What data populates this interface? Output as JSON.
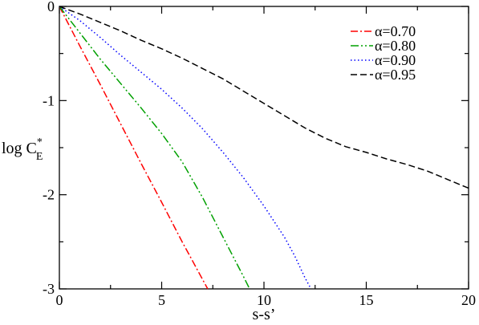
{
  "chart_data": {
    "type": "line",
    "xlabel": "s-s’",
    "ylabel": {
      "base": "log C",
      "superscript": "*",
      "subscript": "E"
    },
    "xlim": [
      0,
      20
    ],
    "ylim": [
      -3,
      0
    ],
    "xticks": [
      0,
      5,
      10,
      15,
      20
    ],
    "yticks": [
      -3,
      -2,
      -1,
      0
    ],
    "grid": false,
    "legend_position": "top-right",
    "series": [
      {
        "name": "α=0.70",
        "color": "#ff0000",
        "dash": "dash-dot",
        "x": [
          0,
          1,
          2,
          3,
          4,
          5,
          6,
          6.5,
          7,
          7.25
        ],
        "y": [
          0,
          -0.42,
          -0.83,
          -1.25,
          -1.67,
          -2.08,
          -2.5,
          -2.7,
          -2.9,
          -3.0
        ]
      },
      {
        "name": "α=0.80",
        "color": "#00a000",
        "dash": "dash-dot-dot",
        "x": [
          0,
          1,
          2,
          3,
          4,
          5,
          6,
          7,
          8,
          9,
          9.3
        ],
        "y": [
          0,
          -0.28,
          -0.56,
          -0.82,
          -1.08,
          -1.35,
          -1.65,
          -2.03,
          -2.45,
          -2.87,
          -3.0
        ]
      },
      {
        "name": "α=0.90",
        "color": "#0000ff",
        "dash": "dotted",
        "x": [
          0,
          1,
          2,
          3,
          4,
          5,
          6,
          7,
          8,
          9,
          10,
          11,
          11.5,
          12,
          12.3
        ],
        "y": [
          0,
          -0.15,
          -0.33,
          -0.52,
          -0.7,
          -0.88,
          -1.08,
          -1.3,
          -1.55,
          -1.82,
          -2.12,
          -2.45,
          -2.65,
          -2.88,
          -3.0
        ]
      },
      {
        "name": "α=0.95",
        "color": "#000000",
        "dash": "dashed",
        "x": [
          0,
          1,
          2,
          3,
          4,
          5,
          6,
          7,
          8,
          9,
          10,
          11,
          12,
          13,
          14,
          15,
          16,
          17,
          18,
          19,
          20
        ],
        "y": [
          0,
          -0.08,
          -0.17,
          -0.26,
          -0.36,
          -0.45,
          -0.55,
          -0.66,
          -0.77,
          -0.9,
          -1.03,
          -1.16,
          -1.29,
          -1.4,
          -1.49,
          -1.55,
          -1.62,
          -1.68,
          -1.75,
          -1.84,
          -1.93
        ]
      }
    ]
  }
}
